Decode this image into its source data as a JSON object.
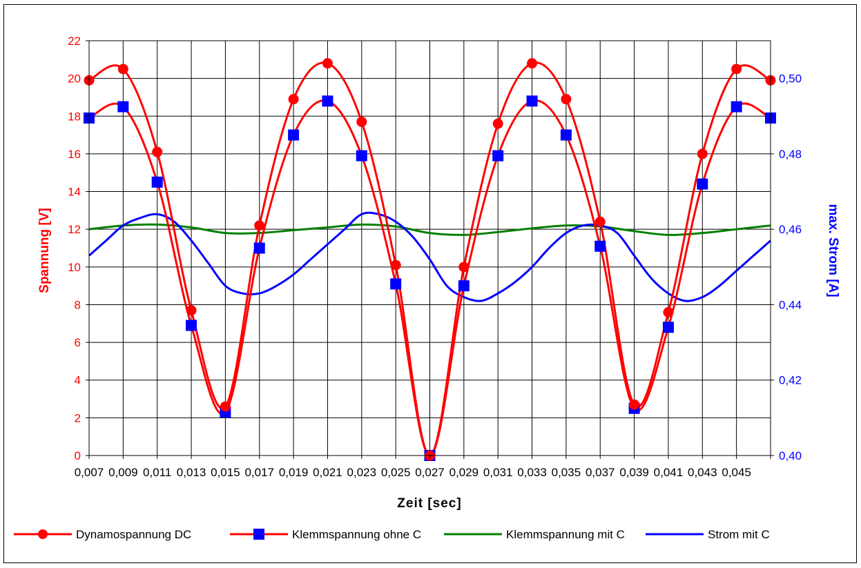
{
  "chart_data": {
    "type": "line",
    "x_ticks": [
      "0,007",
      "0,009",
      "0,011",
      "0,013",
      "0,015",
      "0,017",
      "0,019",
      "0,021",
      "0,023",
      "0,025",
      "0,027",
      "0,029",
      "0,031",
      "0,033",
      "0,035",
      "0,037",
      "0,039",
      "0,041",
      "0,043",
      "0,045"
    ],
    "xlabel": "Zeit [sec]",
    "ylabel_left": "Spannung [V]",
    "ylabel_right": "max. Strom [A]",
    "y_left_range": [
      0,
      22
    ],
    "y_left_ticks": [
      "0",
      "2",
      "4",
      "6",
      "8",
      "10",
      "12",
      "14",
      "16",
      "18",
      "20",
      "22"
    ],
    "y_right_range": [
      0.4,
      0.51
    ],
    "y_right_ticks": [
      "0,40",
      "0,42",
      "0,44",
      "0,46",
      "0,48",
      "0,50"
    ],
    "x_range": [
      0.007,
      0.047
    ],
    "grid": true,
    "legend_position": "bottom",
    "series": [
      {
        "name": "Dynamospannung DC",
        "axis": "left",
        "color": "#ff0000",
        "marker": "circle",
        "x": [
          0.007,
          0.009,
          0.011,
          0.013,
          0.015,
          0.017,
          0.019,
          0.021,
          0.023,
          0.025,
          0.027,
          0.029,
          0.031,
          0.033,
          0.035,
          0.037,
          0.039,
          0.041,
          0.043,
          0.045,
          0.047
        ],
        "values": [
          19.9,
          20.5,
          16.1,
          7.7,
          2.6,
          12.2,
          18.9,
          20.8,
          17.7,
          10.1,
          0.0,
          10.0,
          17.6,
          20.8,
          18.9,
          12.4,
          2.7,
          7.6,
          16.0,
          20.5,
          19.9
        ]
      },
      {
        "name": "Klemmspannung ohne C",
        "axis": "left",
        "color": "#ff0000",
        "marker_color": "#0000ff",
        "marker": "square",
        "x": [
          0.007,
          0.009,
          0.011,
          0.013,
          0.015,
          0.017,
          0.019,
          0.021,
          0.023,
          0.025,
          0.027,
          0.029,
          0.031,
          0.033,
          0.035,
          0.037,
          0.039,
          0.041,
          0.043,
          0.045,
          0.047
        ],
        "values": [
          17.9,
          18.5,
          14.5,
          6.9,
          2.3,
          11.0,
          17.0,
          18.8,
          15.9,
          9.1,
          0.0,
          9.0,
          15.9,
          18.8,
          17.0,
          11.1,
          2.5,
          6.8,
          14.4,
          18.5,
          17.9
        ]
      },
      {
        "name": "Klemmspannung mit C",
        "axis": "left",
        "color": "#008000",
        "marker": "none",
        "x": [
          0.007,
          0.009,
          0.011,
          0.013,
          0.015,
          0.017,
          0.019,
          0.021,
          0.023,
          0.025,
          0.027,
          0.029,
          0.031,
          0.033,
          0.035,
          0.037,
          0.039,
          0.041,
          0.043,
          0.045,
          0.047
        ],
        "values": [
          12.0,
          12.2,
          12.25,
          12.1,
          11.8,
          11.8,
          11.95,
          12.1,
          12.25,
          12.15,
          11.8,
          11.7,
          11.85,
          12.05,
          12.2,
          12.15,
          11.9,
          11.7,
          11.8,
          12.0,
          12.2
        ]
      },
      {
        "name": "Strom mit C",
        "axis": "right",
        "color": "#0000ff",
        "marker": "none",
        "x": [
          0.007,
          0.008,
          0.009,
          0.01,
          0.011,
          0.012,
          0.013,
          0.014,
          0.015,
          0.016,
          0.017,
          0.018,
          0.019,
          0.02,
          0.021,
          0.022,
          0.023,
          0.024,
          0.025,
          0.026,
          0.027,
          0.028,
          0.029,
          0.03,
          0.031,
          0.032,
          0.033,
          0.034,
          0.035,
          0.036,
          0.037,
          0.038,
          0.039,
          0.04,
          0.041,
          0.042,
          0.043,
          0.044,
          0.045,
          0.046,
          0.047
        ],
        "values": [
          0.453,
          0.457,
          0.461,
          0.463,
          0.464,
          0.462,
          0.457,
          0.451,
          0.445,
          0.443,
          0.443,
          0.445,
          0.448,
          0.452,
          0.456,
          0.46,
          0.464,
          0.464,
          0.462,
          0.458,
          0.452,
          0.445,
          0.442,
          0.441,
          0.443,
          0.446,
          0.45,
          0.455,
          0.459,
          0.461,
          0.461,
          0.459,
          0.453,
          0.447,
          0.443,
          0.441,
          0.442,
          0.445,
          0.449,
          0.453,
          0.457
        ]
      }
    ]
  }
}
